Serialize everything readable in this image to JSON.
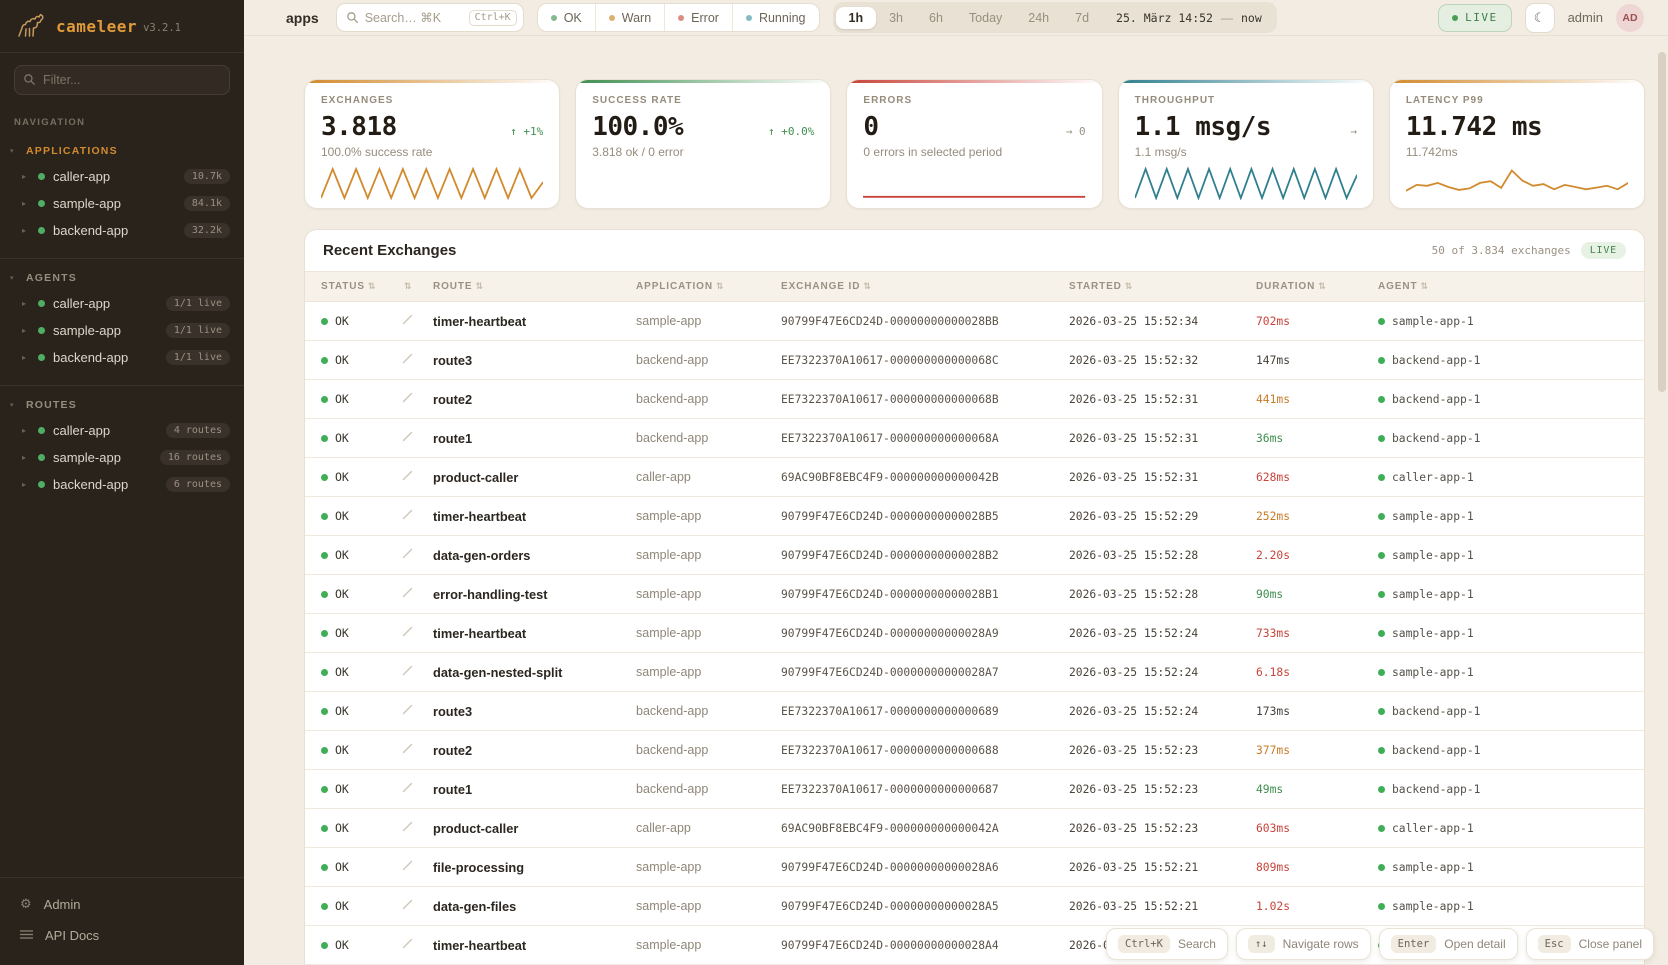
{
  "brand": {
    "name": "cameleer",
    "version": "v3.2.1",
    "logo_color": "#c69a5f"
  },
  "sidebar": {
    "filter_placeholder": "Filter...",
    "nav_label": "NAVIGATION",
    "sections": [
      {
        "label": "APPLICATIONS",
        "active": true,
        "items": [
          {
            "name": "caller-app",
            "badge": "10.7k"
          },
          {
            "name": "sample-app",
            "badge": "84.1k"
          },
          {
            "name": "backend-app",
            "badge": "32.2k"
          }
        ]
      },
      {
        "label": "AGENTS",
        "active": false,
        "items": [
          {
            "name": "caller-app",
            "badge": "1/1 live"
          },
          {
            "name": "sample-app",
            "badge": "1/1 live"
          },
          {
            "name": "backend-app",
            "badge": "1/1 live"
          }
        ]
      },
      {
        "label": "ROUTES",
        "active": false,
        "items": [
          {
            "name": "caller-app",
            "badge": "4 routes"
          },
          {
            "name": "sample-app",
            "badge": "16 routes"
          },
          {
            "name": "backend-app",
            "badge": "6 routes"
          }
        ]
      }
    ],
    "footer": [
      {
        "label": "Admin",
        "icon": "gear"
      },
      {
        "label": "API Docs",
        "icon": "menu"
      }
    ]
  },
  "topbar": {
    "page_title": "apps",
    "search_placeholder": "Search… ⌘K",
    "search_kbd": "Ctrl+K",
    "status_filters": [
      {
        "label": "OK",
        "color": "#84ba8e"
      },
      {
        "label": "Warn",
        "color": "#dcb071"
      },
      {
        "label": "Error",
        "color": "#dd8d80"
      },
      {
        "label": "Running",
        "color": "#84bcc3"
      }
    ],
    "ranges": [
      "1h",
      "3h",
      "6h",
      "Today",
      "24h",
      "7d"
    ],
    "active_range": "1h",
    "datetime": "25. März 14:52",
    "separator": "—",
    "now_label": "now",
    "live_label": "LIVE",
    "username": "admin",
    "avatar_initials": "AD"
  },
  "cards": [
    {
      "label": "EXCHANGES",
      "value": "3.818",
      "delta": "↑ +1%",
      "delta_color": "green",
      "subtitle": "100.0% success rate",
      "accent": "#d28a2e",
      "spark_color": "#d28a2e",
      "spark": [
        0,
        1,
        0,
        1,
        0,
        1,
        0,
        1,
        0,
        1,
        0,
        1,
        0,
        1,
        0,
        1,
        0,
        1,
        0,
        0.55
      ]
    },
    {
      "label": "SUCCESS RATE",
      "value": "100.0%",
      "delta": "↑ +0.0%",
      "delta_color": "green",
      "subtitle": "3.818 ok / 0 error",
      "accent": "#3e8e4e",
      "spark_color": null,
      "spark": null
    },
    {
      "label": "ERRORS",
      "value": "0",
      "delta": "→ 0",
      "delta_color": "gray",
      "subtitle": "0 errors in selected period",
      "accent": "#c9443a",
      "spark_color": "#c9443a",
      "spark": [
        0.04,
        0.04
      ]
    },
    {
      "label": "THROUGHPUT",
      "value": "1.1 msg/s",
      "delta": "→",
      "delta_color": "gray",
      "subtitle": "1.1 msg/s",
      "accent": "#2f7f8f",
      "spark_color": "#2f7f8f",
      "spark": [
        0,
        1,
        0,
        1,
        0,
        1,
        0,
        1,
        0,
        1,
        0,
        1,
        0,
        1,
        0,
        1,
        0,
        1,
        0,
        1,
        0,
        0.8
      ]
    },
    {
      "label": "LATENCY P99",
      "value": "11.742 ms",
      "delta": "",
      "delta_color": "gray",
      "subtitle": "11.742ms",
      "accent": "#d28a2e",
      "spark_color": "#d28a2e",
      "spark": [
        0.25,
        0.45,
        0.42,
        0.52,
        0.38,
        0.28,
        0.33,
        0.52,
        0.58,
        0.35,
        0.95,
        0.6,
        0.42,
        0.48,
        0.3,
        0.45,
        0.38,
        0.3,
        0.36,
        0.42,
        0.3,
        0.52
      ]
    }
  ],
  "exchanges_panel": {
    "title": "Recent Exchanges",
    "summary": "50 of 3.834 exchanges",
    "live_badge": "LIVE",
    "columns": [
      "STATUS",
      "",
      "ROUTE",
      "APPLICATION",
      "EXCHANGE ID",
      "STARTED",
      "DURATION",
      "AGENT"
    ],
    "status_dot_color": "#3fae57",
    "duration_colors": {
      "green": "#3e8e4e",
      "orange": "#c77b28",
      "red": "#c9443a",
      "default": "#46403a"
    },
    "rows": [
      {
        "status": "OK",
        "route": "timer-heartbeat",
        "app": "sample-app",
        "id": "90799F47E6CD24D-00000000000028BB",
        "started": "2026-03-25 15:52:34",
        "duration": "702ms",
        "duration_color": "red",
        "agent": "sample-app-1"
      },
      {
        "status": "OK",
        "route": "route3",
        "app": "backend-app",
        "id": "EE7322370A10617-000000000000068C",
        "started": "2026-03-25 15:52:32",
        "duration": "147ms",
        "duration_color": "default",
        "agent": "backend-app-1"
      },
      {
        "status": "OK",
        "route": "route2",
        "app": "backend-app",
        "id": "EE7322370A10617-000000000000068B",
        "started": "2026-03-25 15:52:31",
        "duration": "441ms",
        "duration_color": "orange",
        "agent": "backend-app-1"
      },
      {
        "status": "OK",
        "route": "route1",
        "app": "backend-app",
        "id": "EE7322370A10617-000000000000068A",
        "started": "2026-03-25 15:52:31",
        "duration": "36ms",
        "duration_color": "green",
        "agent": "backend-app-1"
      },
      {
        "status": "OK",
        "route": "product-caller",
        "app": "caller-app",
        "id": "69AC90BF8EBC4F9-000000000000042B",
        "started": "2026-03-25 15:52:31",
        "duration": "628ms",
        "duration_color": "red",
        "agent": "caller-app-1"
      },
      {
        "status": "OK",
        "route": "timer-heartbeat",
        "app": "sample-app",
        "id": "90799F47E6CD24D-00000000000028B5",
        "started": "2026-03-25 15:52:29",
        "duration": "252ms",
        "duration_color": "orange",
        "agent": "sample-app-1"
      },
      {
        "status": "OK",
        "route": "data-gen-orders",
        "app": "sample-app",
        "id": "90799F47E6CD24D-00000000000028B2",
        "started": "2026-03-25 15:52:28",
        "duration": "2.20s",
        "duration_color": "red",
        "agent": "sample-app-1"
      },
      {
        "status": "OK",
        "route": "error-handling-test",
        "app": "sample-app",
        "id": "90799F47E6CD24D-00000000000028B1",
        "started": "2026-03-25 15:52:28",
        "duration": "90ms",
        "duration_color": "green",
        "agent": "sample-app-1"
      },
      {
        "status": "OK",
        "route": "timer-heartbeat",
        "app": "sample-app",
        "id": "90799F47E6CD24D-00000000000028A9",
        "started": "2026-03-25 15:52:24",
        "duration": "733ms",
        "duration_color": "red",
        "agent": "sample-app-1"
      },
      {
        "status": "OK",
        "route": "data-gen-nested-split",
        "app": "sample-app",
        "id": "90799F47E6CD24D-00000000000028A7",
        "started": "2026-03-25 15:52:24",
        "duration": "6.18s",
        "duration_color": "red",
        "agent": "sample-app-1"
      },
      {
        "status": "OK",
        "route": "route3",
        "app": "backend-app",
        "id": "EE7322370A10617-0000000000000689",
        "started": "2026-03-25 15:52:24",
        "duration": "173ms",
        "duration_color": "default",
        "agent": "backend-app-1"
      },
      {
        "status": "OK",
        "route": "route2",
        "app": "backend-app",
        "id": "EE7322370A10617-0000000000000688",
        "started": "2026-03-25 15:52:23",
        "duration": "377ms",
        "duration_color": "orange",
        "agent": "backend-app-1"
      },
      {
        "status": "OK",
        "route": "route1",
        "app": "backend-app",
        "id": "EE7322370A10617-0000000000000687",
        "started": "2026-03-25 15:52:23",
        "duration": "49ms",
        "duration_color": "green",
        "agent": "backend-app-1"
      },
      {
        "status": "OK",
        "route": "product-caller",
        "app": "caller-app",
        "id": "69AC90BF8EBC4F9-000000000000042A",
        "started": "2026-03-25 15:52:23",
        "duration": "603ms",
        "duration_color": "red",
        "agent": "caller-app-1"
      },
      {
        "status": "OK",
        "route": "file-processing",
        "app": "sample-app",
        "id": "90799F47E6CD24D-00000000000028A6",
        "started": "2026-03-25 15:52:21",
        "duration": "809ms",
        "duration_color": "red",
        "agent": "sample-app-1"
      },
      {
        "status": "OK",
        "route": "data-gen-files",
        "app": "sample-app",
        "id": "90799F47E6CD24D-00000000000028A5",
        "started": "2026-03-25 15:52:21",
        "duration": "1.02s",
        "duration_color": "red",
        "agent": "sample-app-1"
      },
      {
        "status": "OK",
        "route": "timer-heartbeat",
        "app": "sample-app",
        "id": "90799F47E6CD24D-00000000000028A4",
        "started": "2026-03-25 15:52:19",
        "duration": "254ms",
        "duration_color": "orange",
        "agent": "sample-app-1"
      }
    ]
  },
  "hints": [
    {
      "key": "Ctrl+K",
      "label": "Search"
    },
    {
      "key": "↑↓",
      "label": "Navigate rows"
    },
    {
      "key": "Enter",
      "label": "Open detail"
    },
    {
      "key": "Esc",
      "label": "Close panel"
    }
  ]
}
